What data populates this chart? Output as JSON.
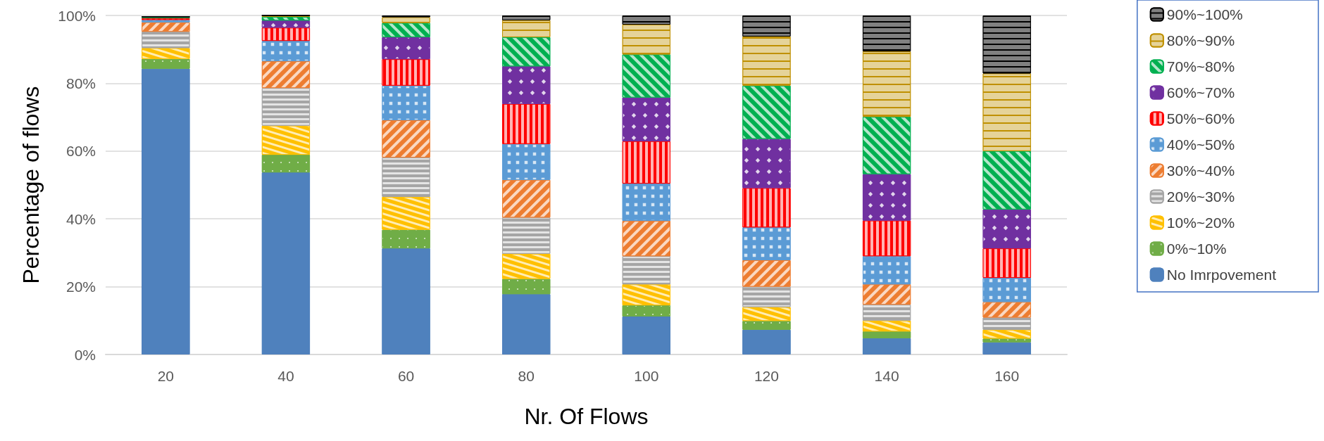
{
  "chart_data": {
    "type": "bar",
    "stacked": true,
    "xlabel": "Nr. Of Flows",
    "ylabel": "Percentage of flows",
    "categories": [
      "20",
      "40",
      "60",
      "80",
      "100",
      "120",
      "140",
      "160"
    ],
    "ylim": [
      0,
      100
    ],
    "yticks": [
      {
        "value": 0,
        "label": "0%"
      },
      {
        "value": 20,
        "label": "20%"
      },
      {
        "value": 40,
        "label": "40%"
      },
      {
        "value": 60,
        "label": "60%"
      },
      {
        "value": 80,
        "label": "80%"
      },
      {
        "value": 100,
        "label": "100%"
      }
    ],
    "grid": "y",
    "legend": "right",
    "series": [
      {
        "name": "No Imrpovement",
        "color": "#4f81bd",
        "values": [
          84.3,
          53.7,
          31.3,
          17.8,
          11.2,
          7.3,
          4.8,
          3.6
        ]
      },
      {
        "name": "0%~10%",
        "color": "#70ad47",
        "values": [
          2.9,
          5.2,
          5.5,
          4.5,
          3.3,
          2.6,
          2.0,
          1.1
        ]
      },
      {
        "name": "10%~20%",
        "color": "#ffc000",
        "values": [
          3.2,
          8.6,
          9.7,
          7.4,
          6.2,
          4.1,
          3.2,
          2.6
        ]
      },
      {
        "name": "20%~30%",
        "color": "#a5a5a5",
        "values": [
          4.8,
          11.1,
          11.6,
          10.7,
          8.3,
          6.0,
          4.7,
          3.6
        ]
      },
      {
        "name": "30%~40%",
        "color": "#ed7d31",
        "values": [
          2.8,
          7.9,
          11.0,
          11.1,
          10.4,
          7.8,
          6.0,
          4.6
        ]
      },
      {
        "name": "40%~50%",
        "color": "#5b9bd5",
        "values": [
          0.7,
          6.0,
          10.2,
          10.6,
          11.0,
          9.7,
          8.3,
          7.1
        ]
      },
      {
        "name": "50%~60%",
        "color": "#ff0000",
        "values": [
          0.5,
          3.9,
          7.8,
          11.8,
          12.5,
          11.6,
          10.5,
          8.7
        ]
      },
      {
        "name": "60%~70%",
        "color": "#7030a0",
        "values": [
          null,
          2.1,
          6.5,
          11.1,
          12.9,
          14.5,
          13.7,
          11.5
        ]
      },
      {
        "name": "70%~80%",
        "color": "#00b050",
        "values": [
          0.4,
          1.1,
          4.2,
          8.6,
          12.7,
          15.7,
          16.9,
          17.2
        ]
      },
      {
        "name": "80%~90%",
        "color": "#bf9000",
        "values": [
          null,
          0.4,
          1.7,
          5.0,
          8.8,
          14.5,
          19.3,
          22.9
        ]
      },
      {
        "name": "90%~100%",
        "color": "#000000",
        "values": [
          0,
          0,
          0.5,
          1.4,
          2.7,
          6.2,
          10.6,
          17.1
        ]
      }
    ]
  }
}
